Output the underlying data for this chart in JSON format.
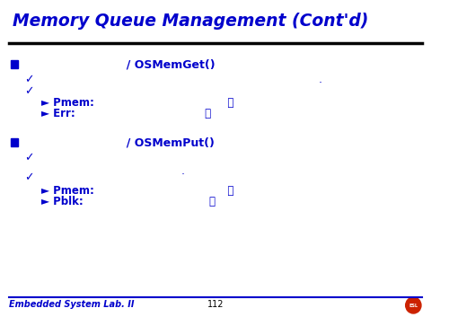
{
  "title": "Memory Queue Management (Cont'd)",
  "title_color": "#0000CC",
  "bg_color": "#FFFFFF",
  "footer_left": "Embedded System Lab. II",
  "footer_center": "112",
  "line_color": "#000000",
  "blue_color": "#0000CC",
  "square_color": "#0000CC",
  "section1_header": "                          / OSMemGet()",
  "section1_check1": "✓",
  "section1_check2": "✓",
  "section1_dot": ".",
  "section1_arrow1": "► Pmem:                                    가",
  "section1_arrow2": "► Err:                                   가",
  "section2_header": "                          / OSMemPut()",
  "section2_check1": "✓",
  "section2_dot": ".",
  "section2_check2": "✓",
  "section2_arrow1": "► Pmem:                                    가",
  "section2_arrow2": "► Pblk:                                  가"
}
